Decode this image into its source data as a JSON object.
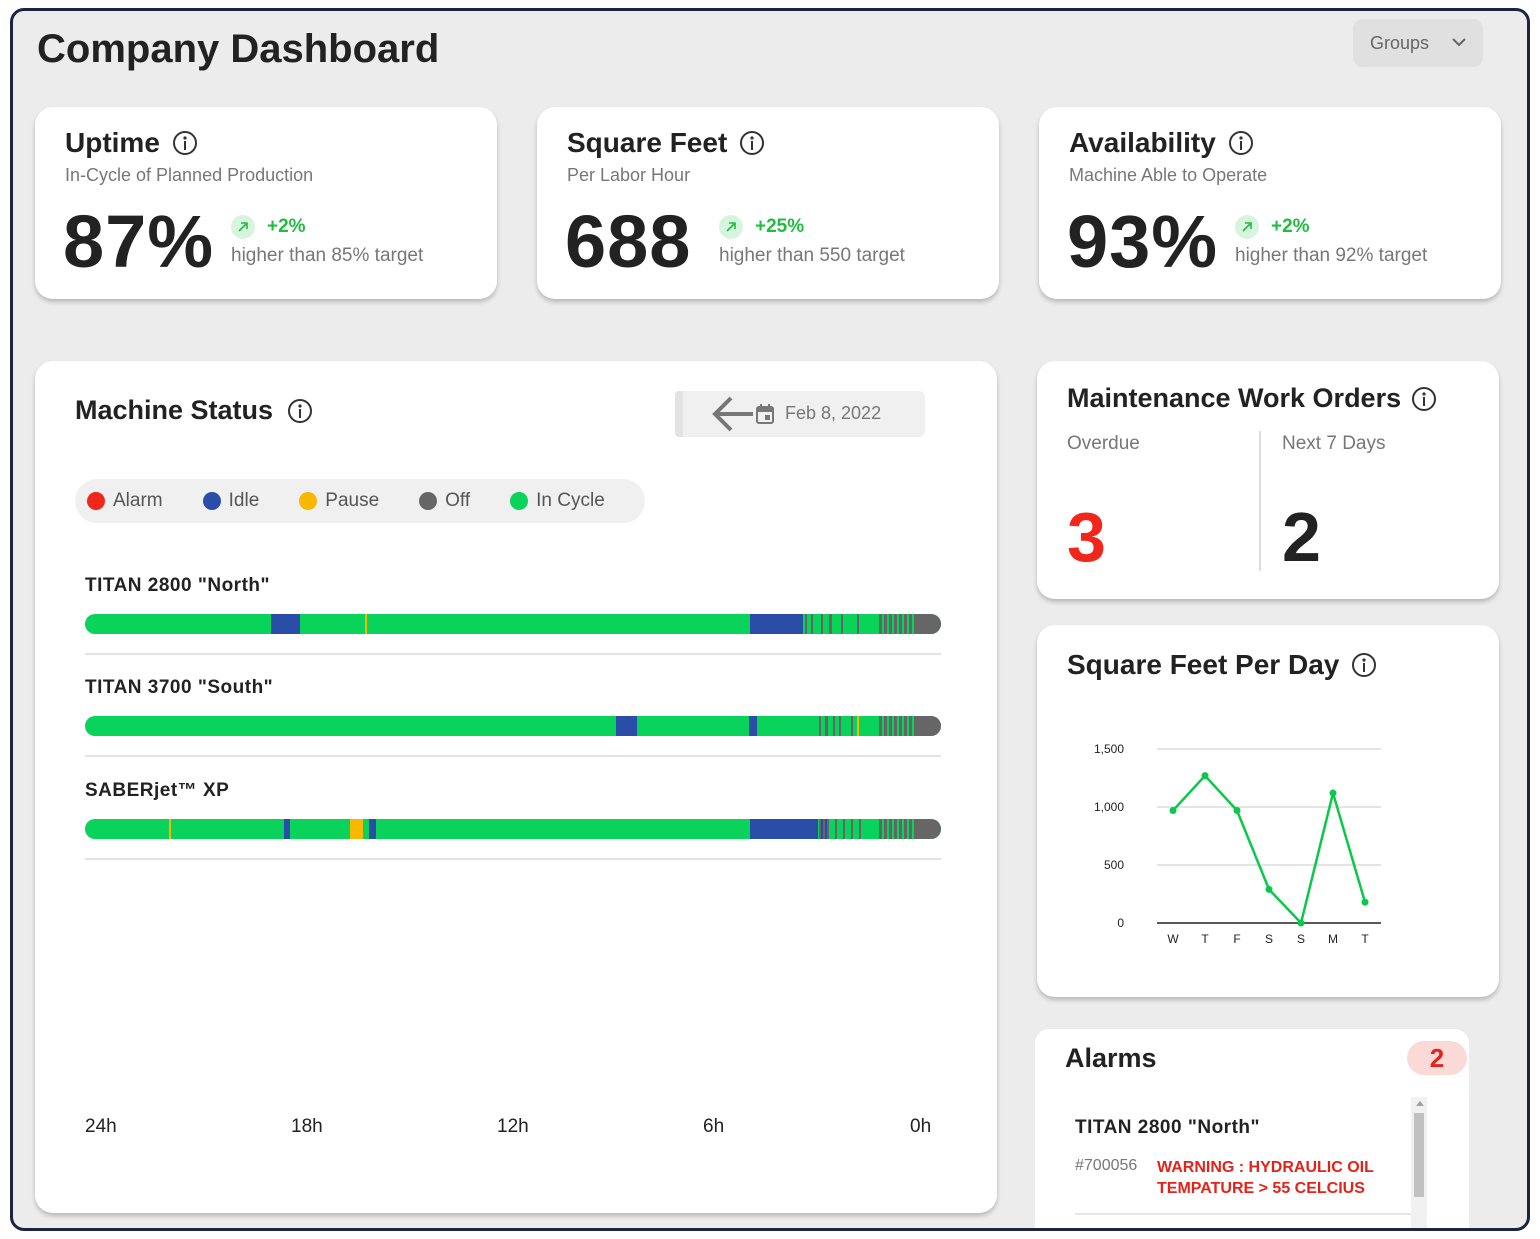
{
  "header": {
    "title": "Company Dashboard",
    "groups_label": "Groups"
  },
  "kpis": [
    {
      "title": "Uptime",
      "subtitle": "In-Cycle of Planned Production",
      "value": "87%",
      "delta": "+2%",
      "target_text": "higher than 85% target"
    },
    {
      "title": "Square Feet",
      "subtitle": "Per Labor Hour",
      "value": "688",
      "delta": "+25%",
      "target_text": "higher than 550 target"
    },
    {
      "title": "Availability",
      "subtitle": "Machine Able to Operate",
      "value": "93%",
      "delta": "+2%",
      "target_text": "higher than 92% target"
    }
  ],
  "machine_status": {
    "title": "Machine Status",
    "date": "Feb 8, 2022",
    "legend": [
      {
        "label": "Alarm",
        "color": "#f2271b"
      },
      {
        "label": "Idle",
        "color": "#2a4ea8"
      },
      {
        "label": "Pause",
        "color": "#f9b800"
      },
      {
        "label": "Off",
        "color": "#666666"
      },
      {
        "label": "In Cycle",
        "color": "#0ad35c"
      }
    ],
    "machines": [
      {
        "name": "TITAN 2800 \"North\""
      },
      {
        "name": "TITAN 3700 \"South\""
      },
      {
        "name": "SABERjet™ XP"
      }
    ],
    "time_axis": [
      "24h",
      "18h",
      "12h",
      "6h",
      "0h"
    ]
  },
  "maintenance": {
    "title": "Maintenance Work Orders",
    "overdue_label": "Overdue",
    "overdue_value": "3",
    "next7_label": "Next 7 Days",
    "next7_value": "2"
  },
  "sqft_chart": {
    "title": "Square Feet Per Day",
    "y_ticks": [
      "1,500",
      "1,000",
      "500",
      "0"
    ]
  },
  "chart_data": {
    "type": "line",
    "x": [
      "W",
      "T",
      "F",
      "S",
      "S",
      "M",
      "T"
    ],
    "series": [
      {
        "values": [
          970,
          1270,
          970,
          290,
          0,
          1120,
          180
        ]
      }
    ],
    "ylim": [
      0,
      1500
    ],
    "yticks": [
      0,
      500,
      1000,
      1500
    ],
    "grid": true,
    "color": "#0ac94a"
  },
  "alarms": {
    "title": "Alarms",
    "count": "2",
    "items": [
      {
        "machine": "TITAN 2800 \"North\"",
        "id": "#700056",
        "message": "WARNING : HYDRAULIC OIL TEMPATURE > 55 CELCIUS"
      }
    ]
  }
}
